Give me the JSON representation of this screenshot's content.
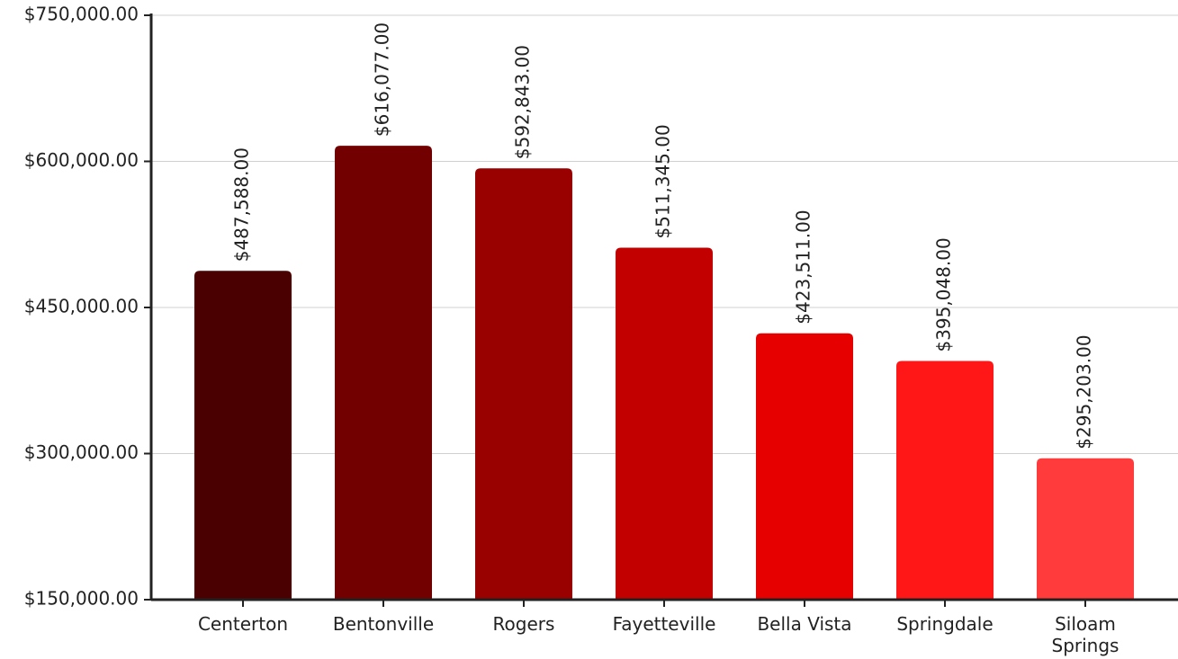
{
  "chart_data": {
    "type": "bar",
    "categories": [
      "Centerton",
      "Bentonville",
      "Rogers",
      "Fayetteville",
      "Bella Vista",
      "Springdale",
      "Siloam Springs"
    ],
    "values": [
      487588,
      616077,
      592843,
      511345,
      423511,
      395048,
      295203
    ],
    "value_labels": [
      "$487,588.00",
      "$616,077.00",
      "$592,843.00",
      "$511,345.00",
      "$423,511.00",
      "$395,048.00",
      "$295,203.00"
    ],
    "colors": [
      "#4a0000",
      "#730000",
      "#990000",
      "#c20000",
      "#e60000",
      "#ff1616",
      "#ff3b3b"
    ],
    "ylim": [
      150000,
      750000
    ],
    "yticks": [
      {
        "value": 150000,
        "label": "$150,000.00"
      },
      {
        "value": 300000,
        "label": "$300,000.00"
      },
      {
        "value": 450000,
        "label": "$450,000.00"
      },
      {
        "value": 600000,
        "label": "$600,000.00"
      },
      {
        "value": 750000,
        "label": "$750,000.00"
      }
    ],
    "grid": true
  }
}
